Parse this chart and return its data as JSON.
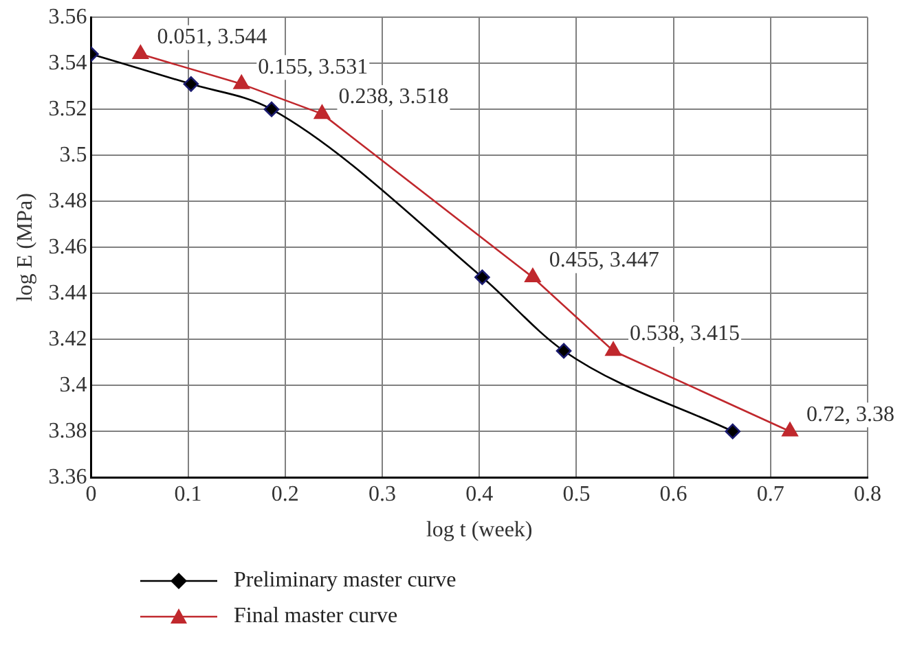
{
  "chart_data": {
    "type": "line",
    "xlabel": "log t (week)",
    "ylabel": "log E (MPa)",
    "xlim": [
      0,
      0.8
    ],
    "xticks": [
      0,
      0.1,
      0.2,
      0.3,
      0.4,
      0.5,
      0.6,
      0.7,
      0.8
    ],
    "ylim": [
      3.36,
      3.56
    ],
    "yticks": [
      3.36,
      3.38,
      3.4,
      3.42,
      3.44,
      3.46,
      3.48,
      3.5,
      3.52,
      3.54,
      3.56
    ],
    "grid": true,
    "legend": "bottom left",
    "series": [
      {
        "name": "Preliminary master curve",
        "color": "#000000",
        "marker": "diamond",
        "x": [
          0,
          0.103,
          0.186,
          0.403,
          0.487,
          0.661
        ],
        "values": [
          3.544,
          3.531,
          3.52,
          3.447,
          3.415,
          3.38
        ]
      },
      {
        "name": "Final master curve",
        "color": "#c0282d",
        "marker": "triangle",
        "x": [
          0.051,
          0.155,
          0.238,
          0.455,
          0.538,
          0.72
        ],
        "values": [
          3.544,
          3.531,
          3.518,
          3.447,
          3.415,
          3.38
        ],
        "value_labels": [
          "0.051, 3.544",
          "0.155, 3.531",
          "0.238, 3.518",
          "0.455, 3.447",
          "0.538, 3.415",
          "0.72, 3.38"
        ]
      }
    ]
  }
}
